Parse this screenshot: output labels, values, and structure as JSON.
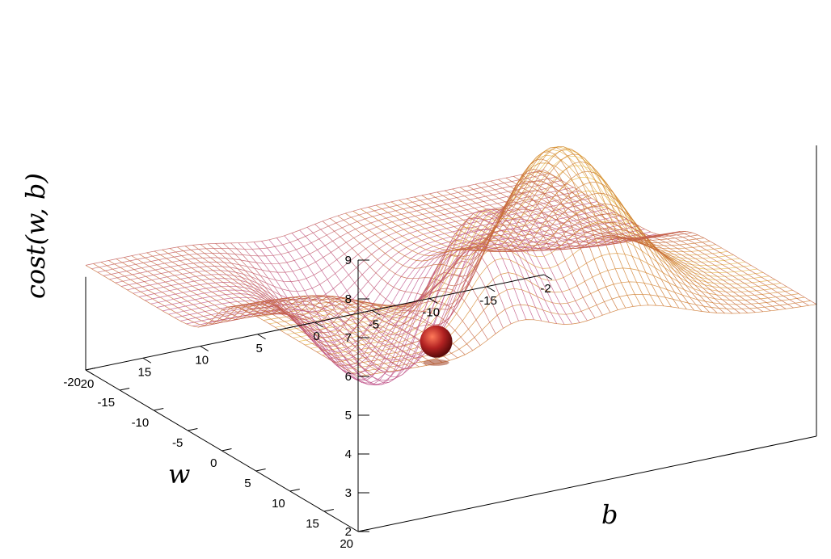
{
  "chart_data": {
    "type": "surface",
    "zlabel": "cost(w, b)",
    "xlabel": "b",
    "ylabel": "w",
    "z_ticks": [
      "2",
      "3",
      "4",
      "5",
      "6",
      "7",
      "8",
      "9"
    ],
    "b_ticks": [
      "20",
      "15",
      "10",
      "5",
      "0",
      "-5",
      "-10",
      "-15",
      "-2"
    ],
    "w_ticks": [
      "20",
      "15",
      "10",
      "5",
      "0",
      "-5",
      "-10",
      "-15",
      "-20"
    ],
    "b_range": [
      -20,
      20
    ],
    "w_range": [
      -20,
      20
    ],
    "z_range": [
      2,
      9
    ],
    "grid": false,
    "colormap": [
      "#8a2be2",
      "#c0504d",
      "#d2691e",
      "#e0a040",
      "#f0e060"
    ],
    "surface_samples": [
      {
        "b": 20,
        "w": 20,
        "cost": 6.0
      },
      {
        "b": -20,
        "w": 20,
        "cost": 5.4
      },
      {
        "b": 20,
        "w": -20,
        "cost": 4.7
      },
      {
        "b": 0,
        "w": 0,
        "cost": 4.7
      },
      {
        "b": 5,
        "w": -8,
        "cost": 2.2
      },
      {
        "b": 3,
        "w": 2,
        "cost": 2.9
      },
      {
        "b": -3,
        "w": 10,
        "cost": 9.3
      },
      {
        "b": 7,
        "w": 16,
        "cost": 8.6
      },
      {
        "b": -12,
        "w": 8,
        "cost": 6.8
      }
    ],
    "ball": {
      "b": 12,
      "w": 18,
      "cost": 6.2,
      "color": "#b22222"
    }
  }
}
